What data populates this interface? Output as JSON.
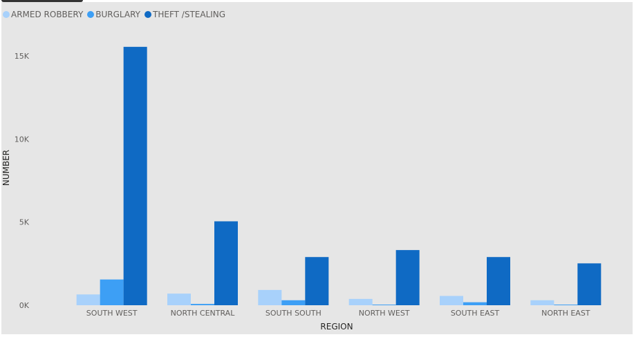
{
  "chart_data": {
    "type": "bar",
    "title": "",
    "xlabel": "REGION",
    "ylabel": "NUMBER",
    "ylim": [
      0,
      16000
    ],
    "yticks": [
      0,
      5000,
      10000,
      15000
    ],
    "ytick_labels": [
      "0K",
      "5K",
      "10K",
      "15K"
    ],
    "categories": [
      "SOUTH WEST",
      "NORTH CENTRAL",
      "SOUTH SOUTH",
      "NORTH WEST",
      "SOUTH EAST",
      "NORTH EAST"
    ],
    "series": [
      {
        "name": "ARMED ROBBERY",
        "color": "#a8d1fb",
        "values": [
          650,
          700,
          920,
          380,
          560,
          300
        ]
      },
      {
        "name": "BURGLARY",
        "color": "#3d9ff5",
        "values": [
          1550,
          80,
          300,
          40,
          180,
          40
        ]
      },
      {
        "name": "THEFT /STEALING",
        "color": "#0f6ac4",
        "values": [
          15550,
          5050,
          2900,
          3320,
          2900,
          2520
        ]
      }
    ],
    "grid": false,
    "legend_position": "top-left"
  }
}
